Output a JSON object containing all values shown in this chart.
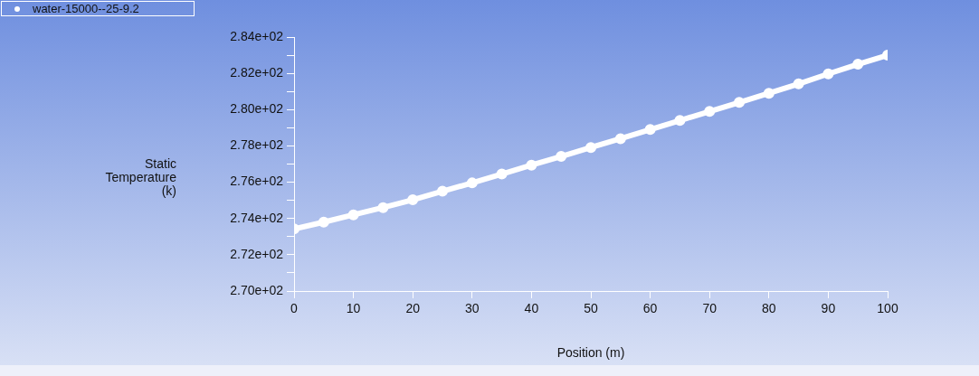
{
  "chart_data": {
    "type": "line",
    "xlabel": "Position (m)",
    "ylabel": "Static\nTemperature\n(k)",
    "x": [
      0,
      5,
      10,
      15,
      20,
      25,
      30,
      35,
      40,
      45,
      50,
      55,
      60,
      65,
      70,
      75,
      80,
      85,
      90,
      95,
      100
    ],
    "series": [
      {
        "name": "water-15000--25-9.2",
        "color": "#ffffff",
        "values": [
          273.42,
          273.8,
          274.2,
          274.6,
          275.03,
          275.5,
          275.96,
          276.45,
          276.94,
          277.42,
          277.91,
          278.4,
          278.9,
          279.4,
          279.9,
          280.4,
          280.9,
          281.42,
          281.97,
          282.5,
          283.0
        ]
      }
    ],
    "xlim": [
      0,
      100
    ],
    "xticks": [
      0,
      10,
      20,
      30,
      40,
      50,
      60,
      70,
      80,
      90,
      100
    ],
    "ylim": [
      270,
      284
    ],
    "yticks": [
      {
        "value": 270,
        "label": "2.70e+02"
      },
      {
        "value": 271,
        "label": null
      },
      {
        "value": 272,
        "label": "2.72e+02"
      },
      {
        "value": 273,
        "label": null
      },
      {
        "value": 274,
        "label": "2.74e+02"
      },
      {
        "value": 275,
        "label": null
      },
      {
        "value": 276,
        "label": "2.76e+02"
      },
      {
        "value": 277,
        "label": null
      },
      {
        "value": 278,
        "label": "2.78e+02"
      },
      {
        "value": 279,
        "label": null
      },
      {
        "value": 280,
        "label": "2.80e+02"
      },
      {
        "value": 281,
        "label": null
      },
      {
        "value": 282,
        "label": "2.82e+02"
      },
      {
        "value": 283,
        "label": null
      },
      {
        "value": 284,
        "label": "2.84e+02"
      }
    ],
    "legend": "top left",
    "marker": "circle",
    "line_style": "solid",
    "grid": false
  }
}
